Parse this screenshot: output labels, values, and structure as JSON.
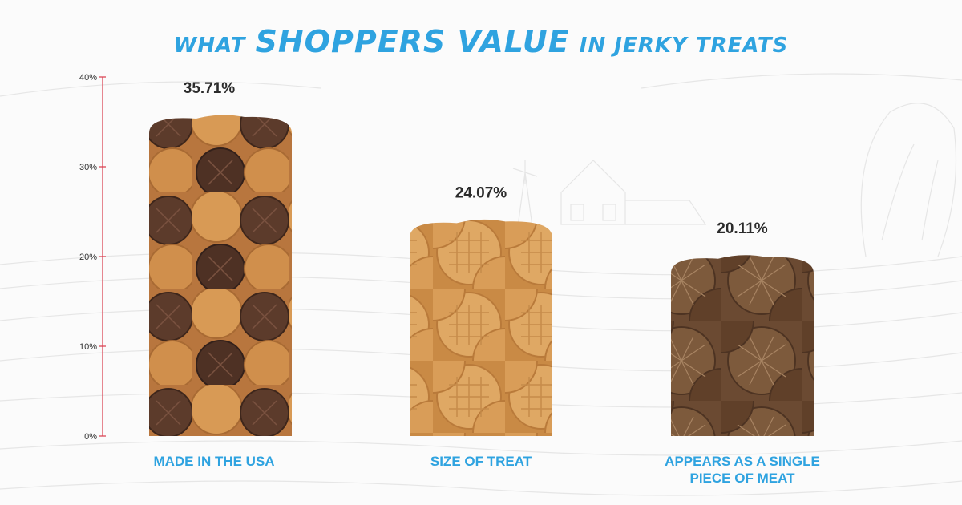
{
  "title": {
    "prefix": "WHAT",
    "highlight": "SHOPPERS VALUE",
    "suffix": "IN JERKY TREATS"
  },
  "colors": {
    "accent": "#2fa3e0",
    "axis": "#d9394a",
    "treat_light": "#d9a05a",
    "treat_dark": "#5a3a2a"
  },
  "chart_data": {
    "type": "bar",
    "title": "WHAT SHOPPERS VALUE IN JERKY TREATS",
    "categories": [
      "MADE IN THE USA",
      "SIZE OF TREAT",
      "APPEARS AS A SINGLE PIECE OF MEAT"
    ],
    "values": [
      35.71,
      24.07,
      20.11
    ],
    "data_labels": [
      "35.71%",
      "24.07%",
      "20.11%"
    ],
    "ylim": [
      0,
      40
    ],
    "yticks": [
      0,
      10,
      20,
      30,
      40
    ],
    "ytick_labels": [
      "0%",
      "10%",
      "20%",
      "30%",
      "40%"
    ],
    "xlabel": "",
    "ylabel": "",
    "grid": false,
    "legend": "none"
  }
}
